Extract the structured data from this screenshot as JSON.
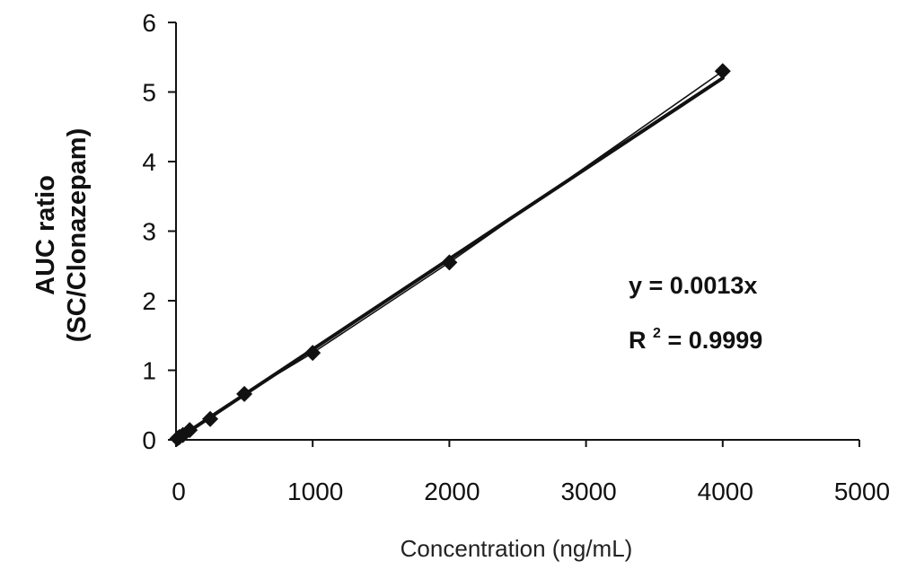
{
  "chart_data": {
    "type": "scatter",
    "xlabel": "Concentration (ng/mL)",
    "ylabel_lines": [
      "AUC ratio",
      "(SC/Clonazepam)"
    ],
    "xlim": [
      0,
      5000
    ],
    "ylim": [
      0,
      6
    ],
    "x_ticks": [
      "0",
      "1000",
      "2000",
      "3000",
      "4000",
      "5000"
    ],
    "y_ticks": [
      "0",
      "1",
      "2",
      "3",
      "4",
      "5",
      "6"
    ],
    "series": [
      {
        "x": [
          10,
          25,
          50,
          100,
          250,
          500,
          1000,
          2000,
          4000
        ],
        "y": [
          0.02,
          0.04,
          0.07,
          0.14,
          0.3,
          0.66,
          1.25,
          2.55,
          5.3
        ]
      }
    ],
    "trendline": {
      "slope": 0.0013,
      "intercept": 0
    },
    "equation": "y = 0.0013x",
    "r2_prefix": "R",
    "r2_sup": "2",
    "r2_value": " = 0.9999",
    "grid": false,
    "colors": {
      "marker": "#111111",
      "line": "#111111",
      "axis": "#111111"
    }
  }
}
